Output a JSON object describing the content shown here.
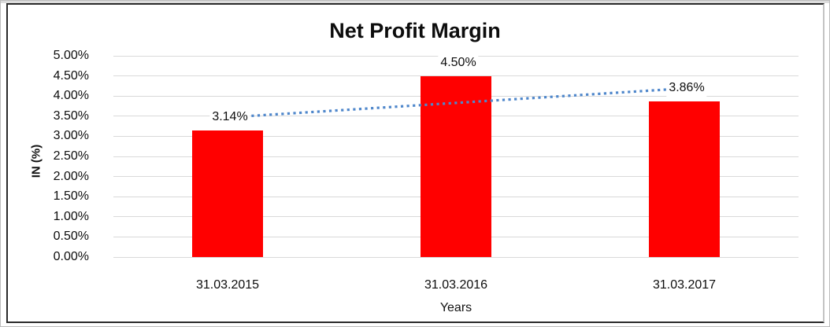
{
  "chart_data": {
    "type": "bar",
    "title": "Net Profit Margin",
    "xlabel": "Years",
    "ylabel": "IN (%)",
    "categories": [
      "31.03.2015",
      "31.03.2016",
      "31.03.2017"
    ],
    "values": [
      3.14,
      4.5,
      3.86
    ],
    "data_labels": [
      "3.14%",
      "4.50%",
      "3.86%"
    ],
    "ylim": [
      0,
      5
    ],
    "ytick_step": 0.5,
    "ytick_labels": [
      "5.00%",
      "4.50%",
      "4.00%",
      "3.50%",
      "3.00%",
      "2.50%",
      "2.00%",
      "1.50%",
      "1.00%",
      "0.50%",
      "0.00%"
    ],
    "grid": "horizontal",
    "legend": "none",
    "bar_color": "#ff0000",
    "gridline_color": "#d9d9d9",
    "trendline": {
      "type": "linear",
      "style": "dotted",
      "color": "#4f87cb",
      "endpoint_values": [
        3.47,
        4.19
      ]
    }
  }
}
